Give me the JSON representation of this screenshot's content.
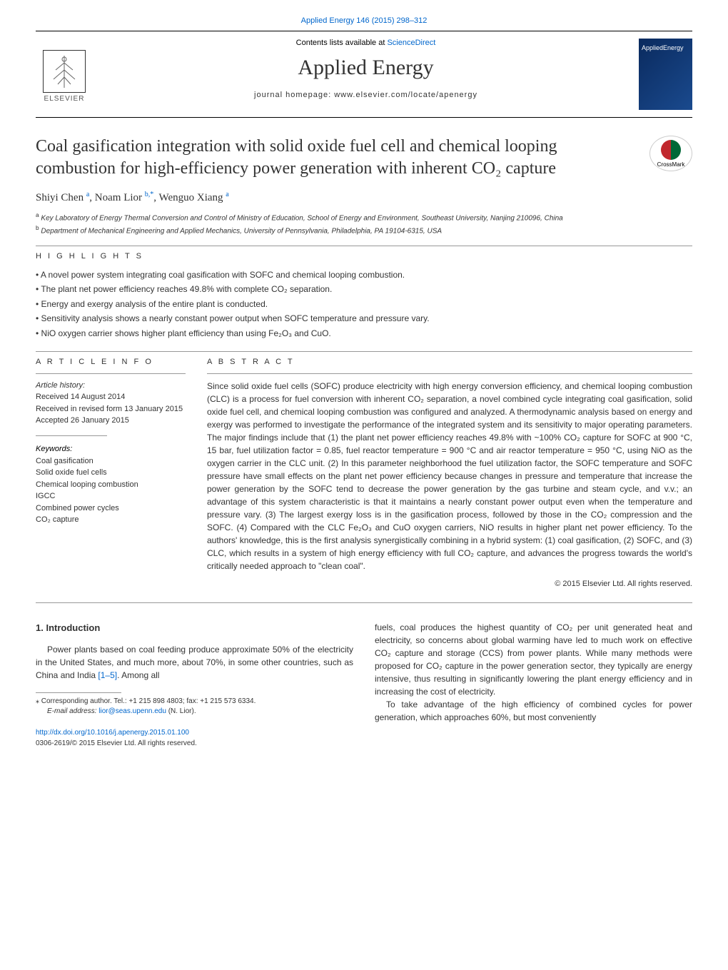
{
  "header": {
    "citation_link": "Applied Energy 146 (2015) 298–312",
    "contents_text": "Contents lists available at ",
    "contents_link": "ScienceDirect",
    "journal_name": "Applied Energy",
    "homepage_text": "journal homepage: www.elsevier.com/locate/apenergy",
    "cover_text": "AppliedEnergy",
    "elsevier_label": "ELSEVIER",
    "crossmark_label": "CrossMark"
  },
  "title": "Coal gasification integration with solid oxide fuel cell and chemical looping combustion for high-efficiency power generation with inherent CO₂ capture",
  "authors_html": "Shiyi Chen <sup>a</sup>, Noam Lior <sup>b,*</sup>, Wenguo Xiang <sup>a</sup>",
  "affiliations": [
    "Key Laboratory of Energy Thermal Conversion and Control of Ministry of Education, School of Energy and Environment, Southeast University, Nanjing 210096, China",
    "Department of Mechanical Engineering and Applied Mechanics, University of Pennsylvania, Philadelphia, PA 19104-6315, USA"
  ],
  "affil_markers": [
    "a",
    "b"
  ],
  "highlights": {
    "header": "H I G H L I G H T S",
    "items": [
      "A novel power system integrating coal gasification with SOFC and chemical looping combustion.",
      "The plant net power efficiency reaches 49.8% with complete CO₂ separation.",
      "Energy and exergy analysis of the entire plant is conducted.",
      "Sensitivity analysis shows a nearly constant power output when SOFC temperature and pressure vary.",
      "NiO oxygen carrier shows higher plant efficiency than using Fe₂O₃ and CuO."
    ]
  },
  "article_info": {
    "header": "A R T I C L E   I N F O",
    "history_label": "Article history:",
    "received": "Received 14 August 2014",
    "revised": "Received in revised form 13 January 2015",
    "accepted": "Accepted 26 January 2015",
    "keywords_label": "Keywords:",
    "keywords": [
      "Coal gasification",
      "Solid oxide fuel cells",
      "Chemical looping combustion",
      "IGCC",
      "Combined power cycles",
      "CO₂ capture"
    ]
  },
  "abstract": {
    "header": "A B S T R A C T",
    "text": "Since solid oxide fuel cells (SOFC) produce electricity with high energy conversion efficiency, and chemical looping combustion (CLC) is a process for fuel conversion with inherent CO₂ separation, a novel combined cycle integrating coal gasification, solid oxide fuel cell, and chemical looping combustion was configured and analyzed. A thermodynamic analysis based on energy and exergy was performed to investigate the performance of the integrated system and its sensitivity to major operating parameters. The major findings include that (1) the plant net power efficiency reaches 49.8% with ~100% CO₂ capture for SOFC at 900 °C, 15 bar, fuel utilization factor = 0.85, fuel reactor temperature = 900 °C and air reactor temperature = 950 °C, using NiO as the oxygen carrier in the CLC unit. (2) In this parameter neighborhood the fuel utilization factor, the SOFC temperature and SOFC pressure have small effects on the plant net power efficiency because changes in pressure and temperature that increase the power generation by the SOFC tend to decrease the power generation by the gas turbine and steam cycle, and v.v.; an advantage of this system characteristic is that it maintains a nearly constant power output even when the temperature and pressure vary. (3) The largest exergy loss is in the gasification process, followed by those in the CO₂ compression and the SOFC. (4) Compared with the CLC Fe₂O₃ and CuO oxygen carriers, NiO results in higher plant net power efficiency. To the authors' knowledge, this is the first analysis synergistically combining in a hybrid system: (1) coal gasification, (2) SOFC, and (3) CLC, which results in a system of high energy efficiency with full CO₂ capture, and advances the progress towards the world's critically needed approach to \"clean coal\".",
    "copyright": "© 2015 Elsevier Ltd. All rights reserved."
  },
  "introduction": {
    "header": "1. Introduction",
    "col1": "Power plants based on coal feeding produce approximate 50% of the electricity in the United States, and much more, about 70%, in some other countries, such as China and India [1–5]. Among all",
    "col2_p1": "fuels, coal produces the highest quantity of CO₂ per unit generated heat and electricity, so concerns about global warming have led to much work on effective CO₂ capture and storage (CCS) from power plants. While many methods were proposed for CO₂ capture in the power generation sector, they typically are energy intensive, thus resulting in significantly lowering the plant energy efficiency and in increasing the cost of electricity.",
    "col2_p2": "To take advantage of the high efficiency of combined cycles for power generation, which approaches 60%, but most conveniently"
  },
  "footnote": {
    "corresponding": "⁎ Corresponding author. Tel.: +1 215 898 4803; fax: +1 215 573 6334.",
    "email_label": "E-mail address: ",
    "email": "lior@seas.upenn.edu",
    "email_name": " (N. Lior)."
  },
  "doi": {
    "link": "http://dx.doi.org/10.1016/j.apenergy.2015.01.100",
    "license": "0306-2619/© 2015 Elsevier Ltd. All rights reserved."
  },
  "ref_link_text": "[1–5]"
}
